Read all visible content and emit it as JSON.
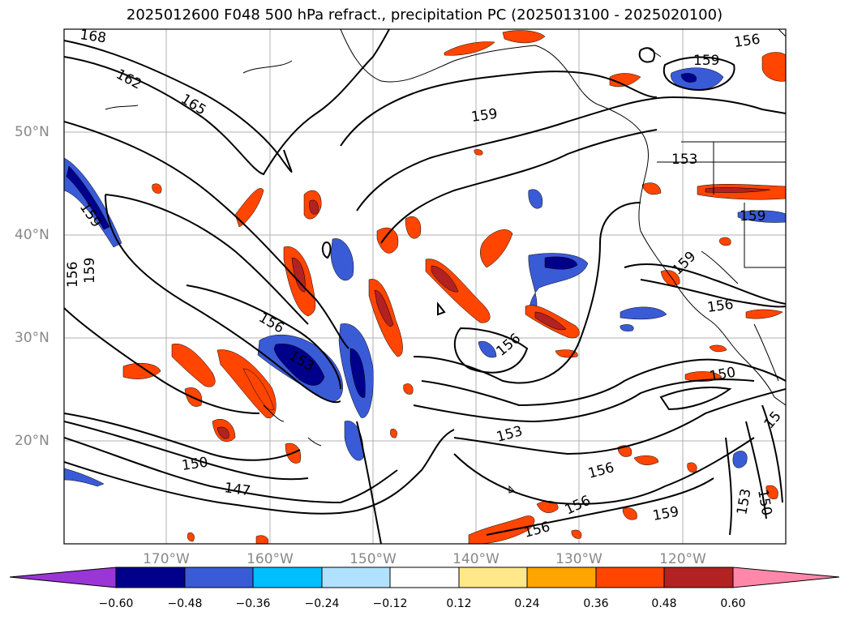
{
  "title": "2025012600 F048 500 hPa refract., precipitation PC (2025013100 - 2025020100)",
  "lat_labels": [
    "50°N",
    "40°N",
    "30°N",
    "20°N"
  ],
  "lon_labels": [
    "170°W",
    "160°W",
    "150°W",
    "140°W",
    "130°W",
    "120°W"
  ],
  "contour_labels": [
    "168",
    "162",
    "165",
    "159",
    "156",
    "159",
    "159",
    "156",
    "153",
    "159",
    "159",
    "156",
    "153",
    "156",
    "156",
    "150",
    "147",
    "153",
    "156",
    "156",
    "156",
    "159",
    "150",
    "153",
    "150",
    "15",
    "159"
  ],
  "colorbar": {
    "ticks": [
      "−0.60",
      "−0.48",
      "−0.36",
      "−0.24",
      "−0.12",
      "0.12",
      "0.24",
      "0.36",
      "0.48",
      "0.60"
    ],
    "colors": [
      "#9a35d6",
      "#00008b",
      "#3a5bd6",
      "#00bfff",
      "#b0e2ff",
      "#ffffff",
      "#ffe88a",
      "#ffa500",
      "#ff4500",
      "#b22222",
      "#ff88aa"
    ]
  }
}
